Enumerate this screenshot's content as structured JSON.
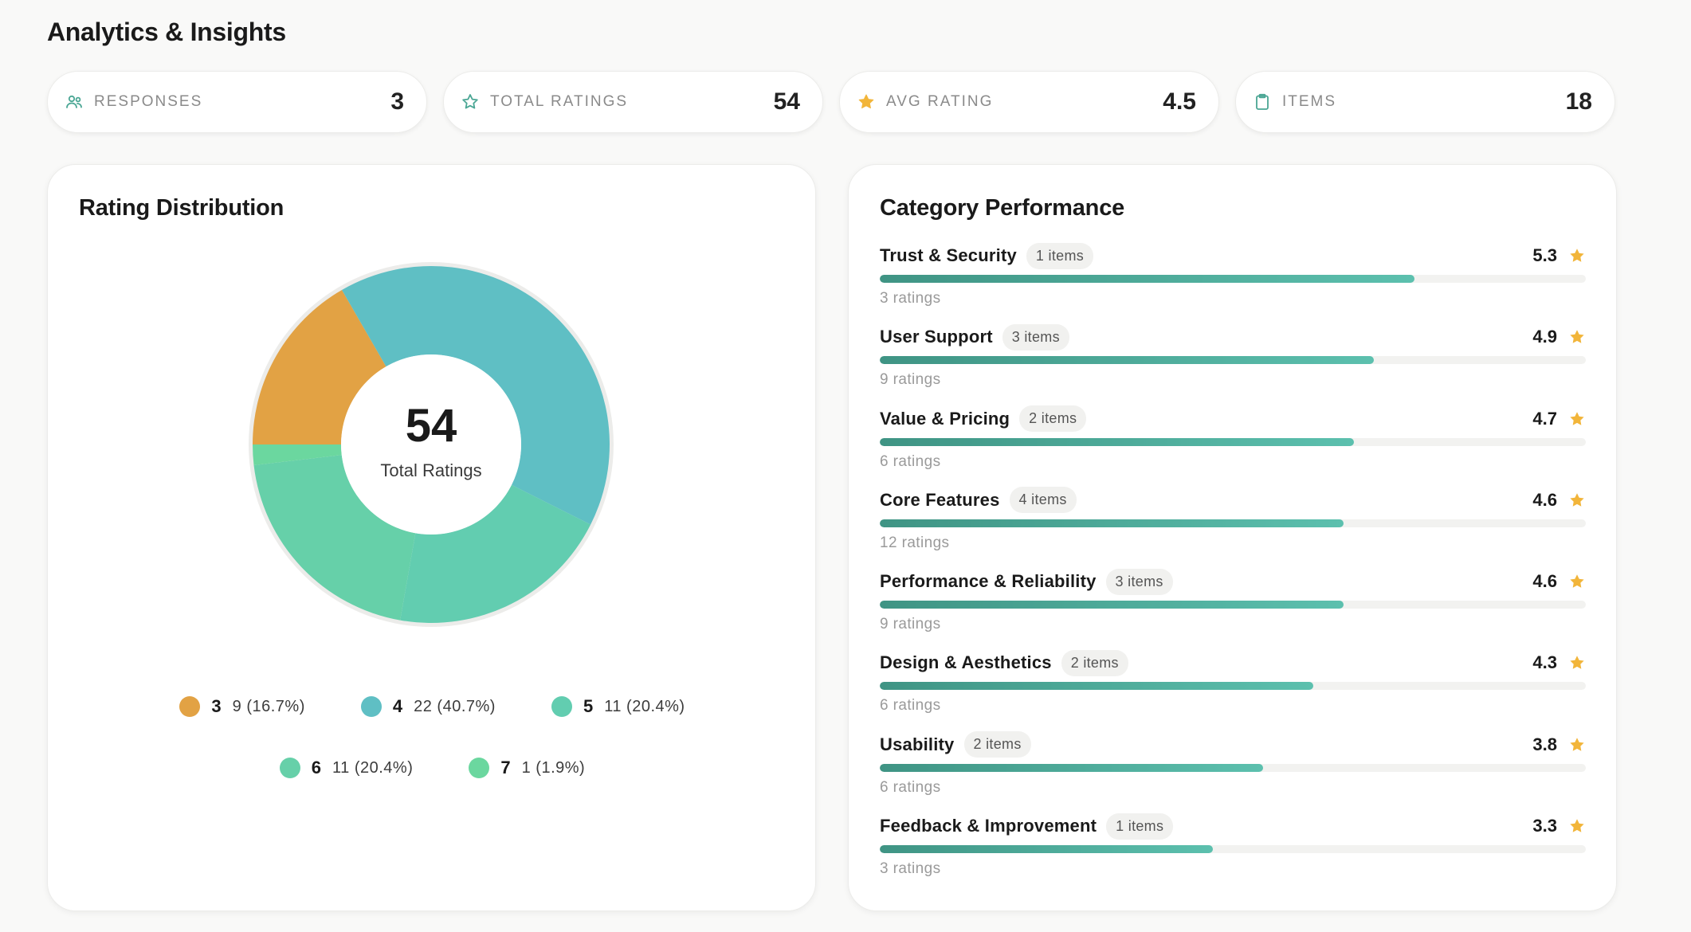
{
  "page": {
    "title": "Analytics & Insights"
  },
  "stats": [
    {
      "label": "RESPONSES",
      "value": "3",
      "icon": "users-icon"
    },
    {
      "label": "TOTAL RATINGS",
      "value": "54",
      "icon": "star-outline-icon"
    },
    {
      "label": "AVG RATING",
      "value": "4.5",
      "icon": "star-filled-icon"
    },
    {
      "label": "ITEMS",
      "value": "18",
      "icon": "clipboard-icon"
    }
  ],
  "distribution": {
    "title": "Rating Distribution",
    "center_value": "54",
    "center_label": "Total Ratings",
    "legend": [
      {
        "key": "3",
        "text": "9 (16.7%)"
      },
      {
        "key": "4",
        "text": "22 (40.7%)"
      },
      {
        "key": "5",
        "text": "11 (20.4%)"
      },
      {
        "key": "6",
        "text": "11 (20.4%)"
      },
      {
        "key": "7",
        "text": "1 (1.9%)"
      }
    ]
  },
  "chart_data": {
    "type": "pie",
    "categories": [
      "3",
      "4",
      "5",
      "6",
      "7"
    ],
    "values": [
      9,
      22,
      11,
      11,
      1
    ],
    "colors": [
      "#e2a244",
      "#5fbfc4",
      "#62cdb0",
      "#66d0a9",
      "#6bd79f"
    ],
    "legend": "bottom"
  },
  "categories": {
    "title": "Category Performance",
    "accent": "#4aa694",
    "star_color": "#f2b53a",
    "max_score": 7,
    "rows": [
      {
        "name": "Trust & Security",
        "badge": "1 items",
        "score": "5.3",
        "ratings": "3 ratings"
      },
      {
        "name": "User Support",
        "badge": "3 items",
        "score": "4.9",
        "ratings": "9 ratings"
      },
      {
        "name": "Value & Pricing",
        "badge": "2 items",
        "score": "4.7",
        "ratings": "6 ratings"
      },
      {
        "name": "Core Features",
        "badge": "4 items",
        "score": "4.6",
        "ratings": "12 ratings"
      },
      {
        "name": "Performance & Reliability",
        "badge": "3 items",
        "score": "4.6",
        "ratings": "9 ratings"
      },
      {
        "name": "Design & Aesthetics",
        "badge": "2 items",
        "score": "4.3",
        "ratings": "6 ratings"
      },
      {
        "name": "Usability",
        "badge": "2 items",
        "score": "3.8",
        "ratings": "6 ratings"
      },
      {
        "name": "Feedback & Improvement",
        "badge": "1 items",
        "score": "3.3",
        "ratings": "3 ratings"
      }
    ]
  }
}
